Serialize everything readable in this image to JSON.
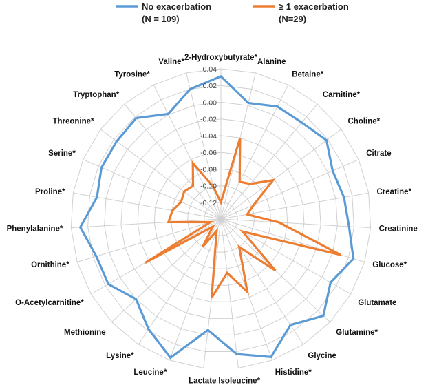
{
  "chart_data": {
    "type": "radar",
    "title": "",
    "categories": [
      "2-Hydroxybutyrate*",
      "Alanine",
      "Betaine*",
      "Carnitine*",
      "Choline*",
      "Citrate",
      "Creatine*",
      "Creatinine",
      "Glucose*",
      "Glutamate",
      "Glutamine*",
      "Glycine",
      "Histidine*",
      "Isoleucine*",
      "Lactate",
      "Leucine*",
      "Lysine*",
      "Methionine",
      "O-Acetylcarnitine*",
      "Ornithine*",
      "Phenylalanine*",
      "Proline*",
      "Serine*",
      "Threonine*",
      "Tryptophan*",
      "Tyrosine*",
      "Valine*"
    ],
    "rlim": [
      -0.14,
      0.04
    ],
    "ticks": [
      "0.04",
      "0.02",
      "0.00",
      "-0.02",
      "-0.04",
      "-0.06",
      "-0.08",
      "-0.10",
      "-0.12"
    ],
    "tick_values": [
      0.04,
      0.02,
      0.0,
      -0.02,
      -0.04,
      -0.06,
      -0.08,
      -0.1,
      -0.12,
      -0.14
    ],
    "legend_position": "top",
    "series": [
      {
        "name": "No exacerbation",
        "subtitle": "(N = 109)",
        "color": "#5B9BD5",
        "values": [
          0.031,
          0.003,
          0.011,
          0.011,
          0.018,
          0.006,
          0.01,
          0.014,
          0.026,
          0.012,
          0.029,
          0.012,
          0.036,
          0.023,
          -0.006,
          0.037,
          0.018,
          0.0,
          0.016,
          0.016,
          0.029,
          0.011,
          0.016,
          0.016,
          0.018,
          0.001,
          0.02
        ]
      },
      {
        "name": "≥ 1 exacerbation",
        "subtitle": "(N=29)",
        "color": "#ED7D31",
        "values": [
          -0.12,
          -0.04,
          -0.09,
          -0.085,
          -0.062,
          -0.097,
          -0.108,
          -0.07,
          0.01,
          -0.11,
          -0.05,
          -0.1,
          -0.047,
          -0.075,
          -0.045,
          -0.125,
          -0.1,
          -0.127,
          -0.035,
          -0.127,
          -0.077,
          -0.081,
          -0.088,
          -0.085,
          -0.088,
          -0.065,
          -0.1
        ]
      }
    ]
  }
}
